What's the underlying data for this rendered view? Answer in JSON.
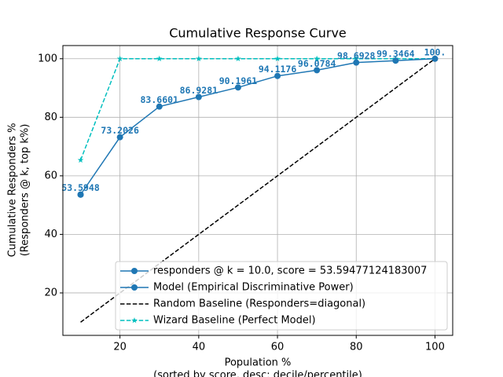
{
  "chart_data": {
    "type": "line",
    "title": "Cumulative Response Curve",
    "xlabel": [
      "Population %",
      "(sorted by score, desc: decile/percentile)"
    ],
    "ylabel": [
      "Cumulative Responders %",
      "(Responders @ k, top k%)"
    ],
    "xlim": [
      5.5,
      104.5
    ],
    "ylim": [
      5.5,
      104.5
    ],
    "xticks": [
      20,
      40,
      60,
      80,
      100
    ],
    "yticks": [
      20,
      40,
      60,
      80,
      100
    ],
    "grid": true,
    "legend": "lower right",
    "series": [
      {
        "name": "responders @ k = 10.0, score = 53.59477124183007",
        "color": "#1f77b4",
        "linestyle": "solid",
        "marker": "o",
        "x": [
          10
        ],
        "values": [
          53.59477124183007
        ]
      },
      {
        "name": "Model (Empirical Discriminative Power)",
        "color": "#1f77b4",
        "linestyle": "solid",
        "marker": "o",
        "x": [
          10,
          20,
          30,
          40,
          50,
          60,
          70,
          80,
          90,
          100
        ],
        "values": [
          53.5948,
          73.2026,
          83.6601,
          86.9281,
          90.1961,
          94.1176,
          96.0784,
          98.6928,
          99.3464,
          100
        ],
        "value_labels": [
          "53.5948",
          "73.2026",
          "83.6601",
          "86.9281",
          "90.1961",
          "94.1176",
          "96.0784",
          "98.6928",
          "99.3464",
          "100."
        ]
      },
      {
        "name": "Random Baseline (Responders=diagonal)",
        "color": "#000000",
        "linestyle": "dashed",
        "marker": null,
        "x": [
          10,
          20,
          30,
          40,
          50,
          60,
          70,
          80,
          90,
          100
        ],
        "values": [
          10,
          20,
          30,
          40,
          50,
          60,
          70,
          80,
          90,
          100
        ]
      },
      {
        "name": "Wizard Baseline (Perfect Model)",
        "color": "#00bfbf",
        "linestyle": "dashed",
        "marker": "*",
        "x": [
          10,
          20,
          30,
          40,
          50,
          60,
          70,
          80,
          90,
          100
        ],
        "values": [
          65.36,
          100,
          100,
          100,
          100,
          100,
          100,
          100,
          100,
          100
        ]
      }
    ]
  }
}
